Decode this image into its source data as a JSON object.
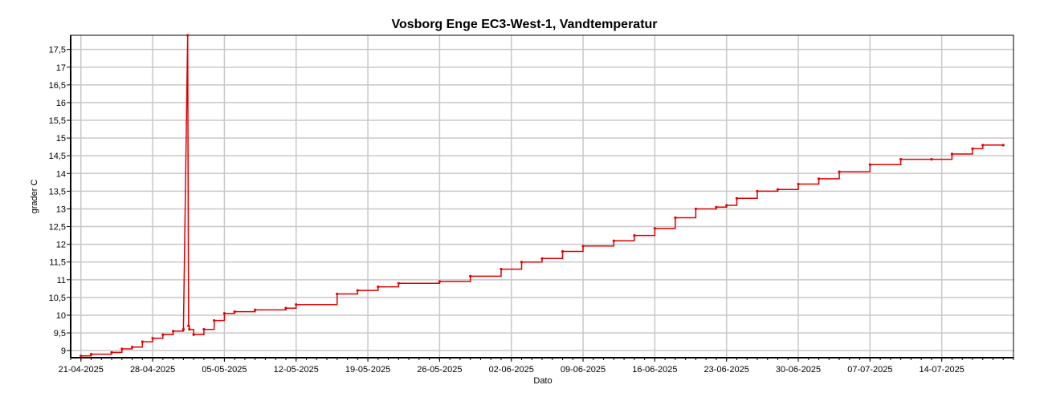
{
  "chart_data": {
    "type": "line",
    "title": "Vosborg Enge EC3-West-1, Vandtemperatur",
    "xlabel": "Dato",
    "ylabel": "grader C",
    "x_ticks": [
      "21-04-2025",
      "28-04-2025",
      "05-05-2025",
      "12-05-2025",
      "19-05-2025",
      "26-05-2025",
      "02-06-2025",
      "09-06-2025",
      "16-06-2025",
      "23-06-2025",
      "30-06-2025",
      "07-07-2025",
      "14-07-2025"
    ],
    "y_ticks": [
      "9",
      "9,5",
      "10",
      "10,5",
      "11",
      "11,5",
      "12",
      "12,5",
      "13",
      "13,5",
      "14",
      "14,5",
      "15",
      "15,5",
      "16",
      "16,5",
      "17",
      "17,5"
    ],
    "xlim": [
      "2025-04-20",
      "2025-07-21"
    ],
    "ylim": [
      8.8,
      17.9
    ],
    "grid": true,
    "legend": "none",
    "series": [
      {
        "color": "#e00000",
        "x": [
          "2025-04-21",
          "2025-04-22",
          "2025-04-24",
          "2025-04-25",
          "2025-04-26",
          "2025-04-27",
          "2025-04-28",
          "2025-04-29",
          "2025-04-30",
          "2025-05-01",
          "2025-05-01 10:00",
          "2025-05-01 12:00",
          "2025-05-01 14:00",
          "2025-05-02",
          "2025-05-03",
          "2025-05-04",
          "2025-05-05",
          "2025-05-06",
          "2025-05-08",
          "2025-05-11",
          "2025-05-12",
          "2025-05-16",
          "2025-05-18",
          "2025-05-20",
          "2025-05-22",
          "2025-05-26",
          "2025-05-29",
          "2025-06-01",
          "2025-06-03",
          "2025-06-05",
          "2025-06-07",
          "2025-06-09",
          "2025-06-12",
          "2025-06-14",
          "2025-06-16",
          "2025-06-18",
          "2025-06-20",
          "2025-06-22",
          "2025-06-23",
          "2025-06-24",
          "2025-06-26",
          "2025-06-28",
          "2025-06-30",
          "2025-07-02",
          "2025-07-04",
          "2025-07-07",
          "2025-07-10",
          "2025-07-13",
          "2025-07-15",
          "2025-07-17",
          "2025-07-18",
          "2025-07-20"
        ],
        "y": [
          8.85,
          8.9,
          8.95,
          9.05,
          9.1,
          9.25,
          9.35,
          9.45,
          9.55,
          9.6,
          17.9,
          9.7,
          9.6,
          9.45,
          9.6,
          9.85,
          10.05,
          10.1,
          10.15,
          10.2,
          10.3,
          10.6,
          10.7,
          10.8,
          10.9,
          10.95,
          11.1,
          11.3,
          11.5,
          11.6,
          11.8,
          11.95,
          12.1,
          12.25,
          12.45,
          12.75,
          13.0,
          13.05,
          13.1,
          13.3,
          13.5,
          13.55,
          13.7,
          13.85,
          14.05,
          14.25,
          14.4,
          14.4,
          14.55,
          14.7,
          14.8,
          14.8
        ]
      }
    ]
  }
}
